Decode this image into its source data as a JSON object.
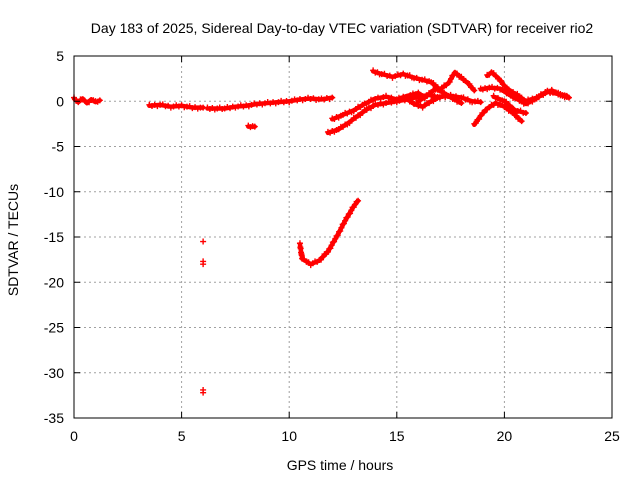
{
  "chart_data": {
    "type": "scatter",
    "title": "Day 183 of 2025, Sidereal Day-to-day VTEC variation (SDTVAR) for receiver rio2",
    "xlabel": "GPS time / hours",
    "ylabel": "SDTVAR / TECUs",
    "xlim": [
      0,
      25
    ],
    "ylim": [
      -35,
      5
    ],
    "xticks": [
      0,
      5,
      10,
      15,
      20,
      25
    ],
    "yticks": [
      5,
      0,
      -5,
      -10,
      -15,
      -20,
      -25,
      -30,
      -35
    ],
    "grid": true,
    "marker": "plus",
    "series": [
      {
        "name": "SDTVAR",
        "color": "#ff0000",
        "segments": [
          [
            [
              0.0,
              0.3
            ],
            [
              0.2,
              -0.1
            ],
            [
              0.4,
              0.3
            ],
            [
              0.6,
              -0.2
            ],
            [
              0.8,
              0.2
            ],
            [
              1.0,
              -0.1
            ],
            [
              1.2,
              0.1
            ]
          ],
          [
            [
              3.5,
              -0.5
            ],
            [
              4.0,
              -0.4
            ],
            [
              4.5,
              -0.6
            ],
            [
              5.0,
              -0.5
            ],
            [
              5.5,
              -0.7
            ],
            [
              6.0,
              -0.7
            ]
          ],
          [
            [
              6.2,
              -0.8
            ],
            [
              7.0,
              -0.8
            ],
            [
              7.5,
              -0.6
            ],
            [
              8.0,
              -0.5
            ],
            [
              8.5,
              -0.3
            ],
            [
              9.0,
              -0.2
            ],
            [
              9.5,
              -0.1
            ],
            [
              10.0,
              0.0
            ],
            [
              10.5,
              0.2
            ],
            [
              11.0,
              0.3
            ],
            [
              11.5,
              0.2
            ],
            [
              12.0,
              0.4
            ]
          ],
          [
            [
              8.1,
              -2.8
            ],
            [
              8.4,
              -2.8
            ]
          ],
          [
            [
              10.5,
              -15.8
            ],
            [
              10.6,
              -17.4
            ],
            [
              11.0,
              -18.0
            ],
            [
              11.4,
              -17.6
            ],
            [
              11.8,
              -16.6
            ],
            [
              12.2,
              -15.0
            ],
            [
              12.6,
              -13.2
            ],
            [
              13.0,
              -11.6
            ],
            [
              13.2,
              -11.0
            ]
          ],
          [
            [
              11.8,
              -3.5
            ],
            [
              12.3,
              -3.1
            ],
            [
              12.8,
              -2.3
            ],
            [
              13.2,
              -1.6
            ],
            [
              13.6,
              -0.9
            ],
            [
              14.0,
              -0.4
            ],
            [
              14.5,
              -0.2
            ],
            [
              15.0,
              0.0
            ],
            [
              15.5,
              0.2
            ],
            [
              16.0,
              0.5
            ],
            [
              16.5,
              0.7
            ],
            [
              17.0,
              0.4
            ]
          ],
          [
            [
              12.0,
              -2.0
            ],
            [
              12.5,
              -1.5
            ],
            [
              13.0,
              -1.0
            ],
            [
              13.5,
              -0.3
            ],
            [
              14.0,
              0.3
            ],
            [
              14.5,
              0.5
            ],
            [
              15.0,
              0.2
            ],
            [
              15.5,
              0.6
            ],
            [
              16.0,
              0.9
            ],
            [
              16.3,
              0.4
            ]
          ],
          [
            [
              13.9,
              3.3
            ],
            [
              14.3,
              3.0
            ],
            [
              14.8,
              2.7
            ],
            [
              15.3,
              3.0
            ],
            [
              15.8,
              2.6
            ],
            [
              16.3,
              2.3
            ],
            [
              16.6,
              2.1
            ],
            [
              17.0,
              1.3
            ],
            [
              17.4,
              2.0
            ],
            [
              17.7,
              3.2
            ],
            [
              18.0,
              2.6
            ],
            [
              18.3,
              2.0
            ],
            [
              18.6,
              1.2
            ]
          ],
          [
            [
              15.5,
              0.2
            ],
            [
              15.8,
              -0.3
            ],
            [
              16.2,
              -0.6
            ],
            [
              16.6,
              0.0
            ],
            [
              17.0,
              0.5
            ],
            [
              17.5,
              0.6
            ],
            [
              18.0,
              0.4
            ],
            [
              18.5,
              0.0
            ],
            [
              18.9,
              -0.1
            ]
          ],
          [
            [
              16.0,
              0.0
            ],
            [
              16.4,
              0.6
            ],
            [
              16.8,
              1.4
            ],
            [
              17.2,
              0.9
            ],
            [
              17.6,
              0.3
            ],
            [
              18.0,
              -0.2
            ]
          ],
          [
            [
              19.2,
              2.8
            ],
            [
              19.4,
              3.2
            ],
            [
              19.7,
              2.6
            ],
            [
              20.0,
              1.7
            ],
            [
              20.3,
              1.1
            ],
            [
              20.6,
              0.7
            ],
            [
              21.0,
              0.0
            ],
            [
              21.5,
              0.4
            ],
            [
              22.0,
              1.1
            ],
            [
              22.5,
              0.8
            ],
            [
              22.9,
              0.6
            ]
          ],
          [
            [
              18.6,
              -2.6
            ],
            [
              18.9,
              -1.6
            ],
            [
              19.2,
              -0.8
            ],
            [
              19.6,
              -0.2
            ],
            [
              20.0,
              -0.6
            ],
            [
              20.4,
              -1.3
            ],
            [
              20.8,
              -2.2
            ]
          ],
          [
            [
              18.9,
              1.3
            ],
            [
              19.3,
              1.5
            ],
            [
              19.8,
              1.4
            ],
            [
              20.3,
              0.6
            ],
            [
              20.7,
              0.1
            ],
            [
              21.0,
              -0.3
            ],
            [
              21.4,
              0.2
            ],
            [
              21.8,
              0.8
            ],
            [
              22.2,
              1.2
            ],
            [
              22.6,
              0.7
            ],
            [
              23.0,
              0.4
            ]
          ],
          [
            [
              19.5,
              0.5
            ],
            [
              20.0,
              0.0
            ],
            [
              20.5,
              -1.0
            ],
            [
              21.0,
              -1.3
            ]
          ]
        ],
        "isolated_points": [
          [
            6.0,
            -15.5
          ],
          [
            6.0,
            -17.7
          ],
          [
            6.0,
            -18.0
          ],
          [
            6.0,
            -31.9
          ],
          [
            6.0,
            -32.2
          ]
        ]
      }
    ]
  }
}
